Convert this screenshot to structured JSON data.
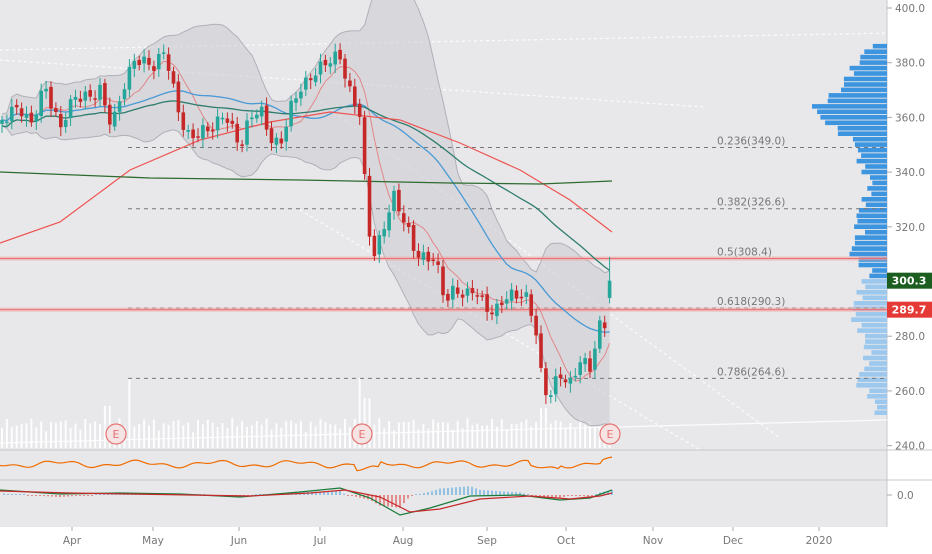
{
  "colors": {
    "background": "#e8e8eb",
    "axis_bg": "#ffffff",
    "up": "#26a69a",
    "down": "#c62828",
    "sma_fast": "#e57373",
    "sma_mid": "#4a9ad6",
    "sma_slow": "#2e7d6e",
    "sma_long": "#ef5350",
    "sma_200": "#2e6b2e",
    "bollinger": "#b0b0b8",
    "fib": "#777777",
    "vp_solid": "#3d95e0",
    "vp_light": "#9cc8ee",
    "price_green": "#1b5e20",
    "price_red": "#e53935",
    "rsi": "#ef6c00",
    "macd": "#1a7a3a",
    "signal": "#c62828"
  },
  "chart_data": {
    "type": "candlestick",
    "price_axis": {
      "ticks": [
        "400.0",
        "380.0",
        "360.0",
        "340.0",
        "320.0",
        "300.0",
        "280.0",
        "260.0",
        "240.0"
      ],
      "range": [
        240,
        400
      ]
    },
    "time_axis": {
      "labels": [
        "Apr",
        "May",
        "Jun",
        "Jul",
        "Aug",
        "Sep",
        "Oct",
        "Nov",
        "Dec",
        "2020",
        "Feb"
      ]
    },
    "fibonacci": [
      {
        "label": "0.236(349.0)",
        "value": 349.0
      },
      {
        "label": "0.382(326.6)",
        "value": 326.6
      },
      {
        "label": "0.5(308.4)",
        "value": 308.4
      },
      {
        "label": "0.618(290.3)",
        "value": 290.3
      },
      {
        "label": "0.786(264.6)",
        "value": 264.6
      }
    ],
    "price_labels": [
      {
        "label": "300.3",
        "value": 300.3
      },
      {
        "label": "289.7",
        "value": 289.7
      }
    ],
    "horizontal_lines": [
      308.4,
      289.7
    ],
    "earnings_markers": [
      {
        "label": "E",
        "date": "Apr 16"
      },
      {
        "label": "E",
        "date": "Jul 17"
      },
      {
        "label": "E",
        "date": "Oct 16"
      }
    ],
    "macd_axis": {
      "ticks": [
        "0.0"
      ]
    },
    "sma_200_level": 337.5,
    "last_close": 300.3,
    "volume_profile_range": [
      252,
      386
    ]
  }
}
